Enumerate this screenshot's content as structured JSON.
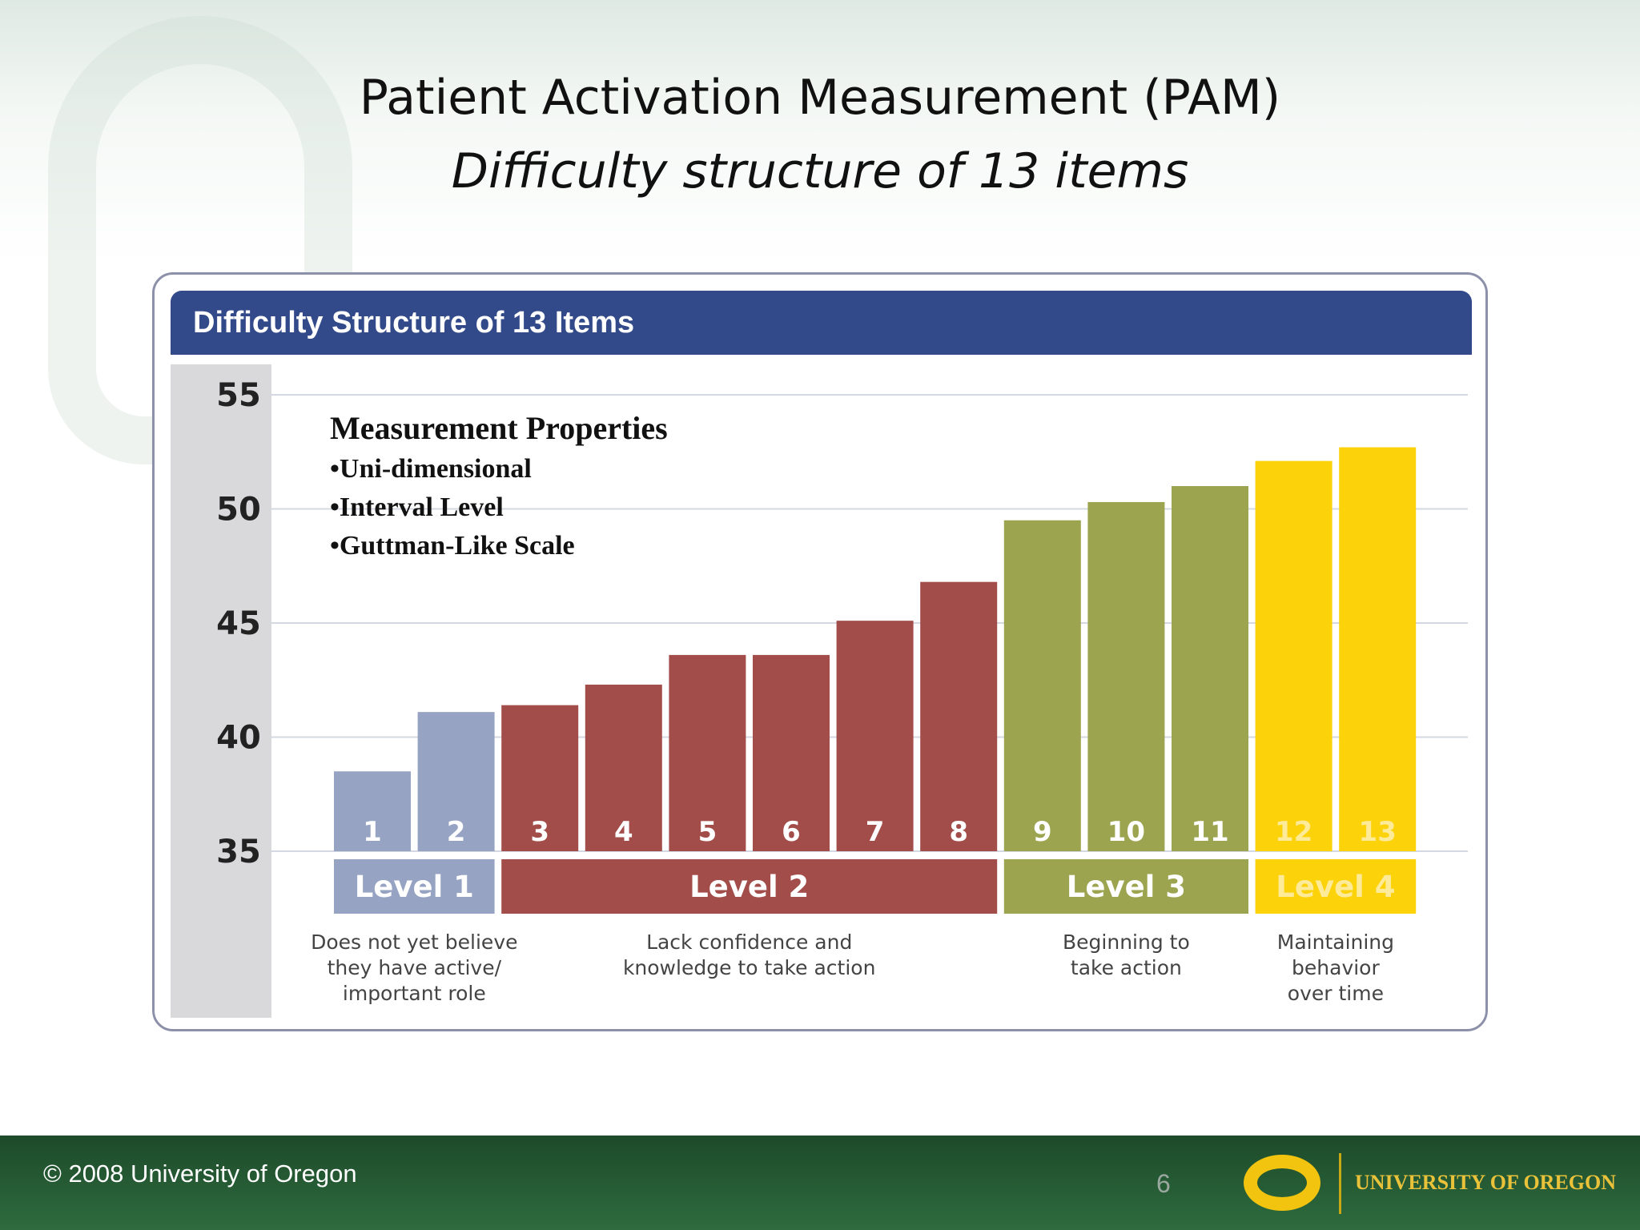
{
  "slide": {
    "title": "Patient Activation Measurement (PAM)",
    "subtitle": "Difficulty structure of 13 items",
    "page_number": "6"
  },
  "properties": {
    "title": "Measurement Properties",
    "items": [
      "•Uni-dimensional",
      "•Interval Level",
      "•Guttman-Like Scale"
    ]
  },
  "footer": {
    "copyright": "© 2008 University of Oregon",
    "logo_text": "UNIVERSITY OF OREGON"
  },
  "chart_data": {
    "type": "bar",
    "title": "Difficulty Structure of 13 Items",
    "categories": [
      "1",
      "2",
      "3",
      "4",
      "5",
      "6",
      "7",
      "8",
      "9",
      "10",
      "11",
      "12",
      "13"
    ],
    "values": [
      38.5,
      41.1,
      41.4,
      42.3,
      43.6,
      43.6,
      45.1,
      46.8,
      49.5,
      50.3,
      51.0,
      52.1,
      52.7
    ],
    "ylim": [
      35,
      55
    ],
    "yticks": [
      35,
      40,
      45,
      50,
      55
    ],
    "grid": true,
    "levels": [
      {
        "label": "Level 1",
        "items": [
          1,
          2
        ],
        "color": "#97a3c3",
        "text_color": "#ffffff",
        "description": [
          "Does not yet believe",
          "they have active/",
          "important role"
        ]
      },
      {
        "label": "Level 2",
        "items": [
          3,
          8
        ],
        "color": "#a24d49",
        "text_color": "#ffffff",
        "description": [
          "Lack confidence and",
          "knowledge to take action"
        ]
      },
      {
        "label": "Level 3",
        "items": [
          9,
          11
        ],
        "color": "#9ca44f",
        "text_color": "#ffffff",
        "description": [
          "Beginning to",
          "take action"
        ]
      },
      {
        "label": "Level 4",
        "items": [
          12,
          13
        ],
        "color": "#fcd20a",
        "text_color": "#fdeb9a",
        "description": [
          "Maintaining",
          "behavior",
          "over time"
        ]
      }
    ]
  }
}
